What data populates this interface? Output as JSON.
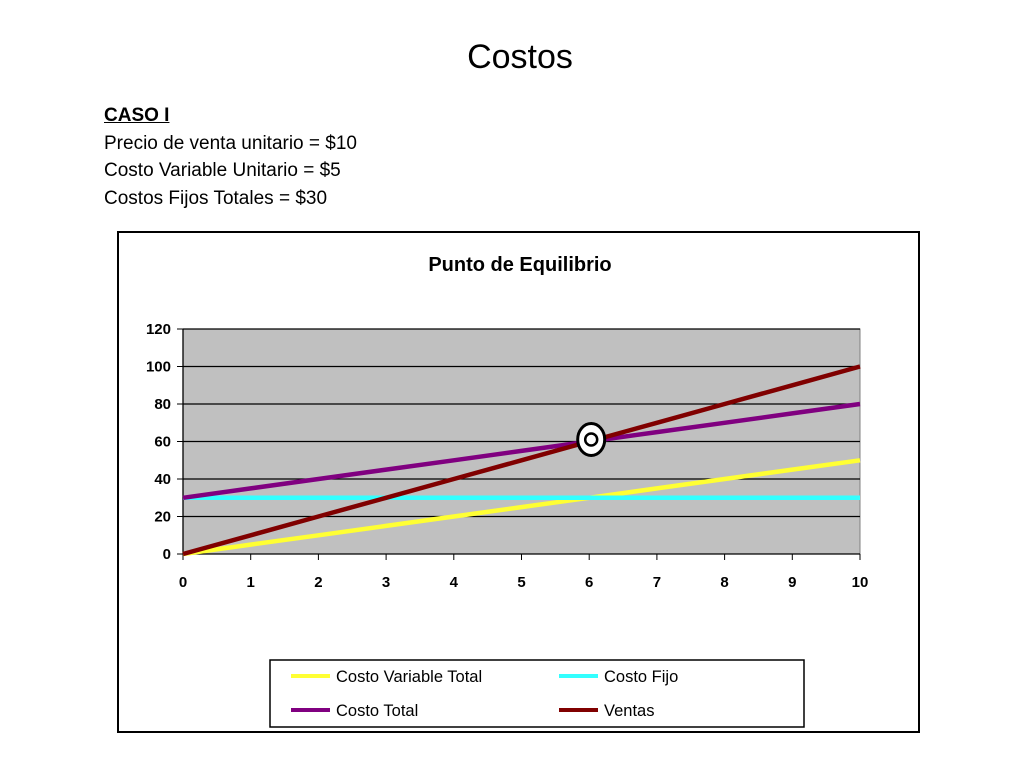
{
  "slide": {
    "title": "Costos",
    "case_heading": "CASO I",
    "lines": [
      "Precio de venta unitario = $10",
      "Costo Variable Unitario = $5",
      "Costos Fijos Totales = $30"
    ]
  },
  "chart_data": {
    "type": "line",
    "title": "Punto de Equilibrio",
    "xlabel": "",
    "ylabel": "",
    "x": [
      0,
      1,
      2,
      3,
      4,
      5,
      6,
      7,
      8,
      9,
      10
    ],
    "xlim": [
      0,
      10
    ],
    "ylim": [
      0,
      120
    ],
    "yticks": [
      0,
      20,
      40,
      60,
      80,
      100,
      120
    ],
    "grid": true,
    "plot_background": "#c0c0c0",
    "legend_position": "bottom",
    "series": [
      {
        "name": "Costo Variable Total",
        "color": "#ffff33",
        "values": [
          0,
          5,
          10,
          15,
          20,
          25,
          30,
          35,
          40,
          45,
          50
        ]
      },
      {
        "name": "Costo Fijo",
        "color": "#33ffff",
        "values": [
          30,
          30,
          30,
          30,
          30,
          30,
          30,
          30,
          30,
          30,
          30
        ]
      },
      {
        "name": "Costo Total",
        "color": "#800080",
        "values": [
          30,
          35,
          40,
          45,
          50,
          55,
          60,
          65,
          70,
          75,
          80
        ]
      },
      {
        "name": "Ventas",
        "color": "#800000",
        "values": [
          0,
          10,
          20,
          30,
          40,
          50,
          60,
          70,
          80,
          90,
          100
        ]
      }
    ],
    "annotation": {
      "type": "circle-marker",
      "x": 6,
      "y": 60
    }
  }
}
